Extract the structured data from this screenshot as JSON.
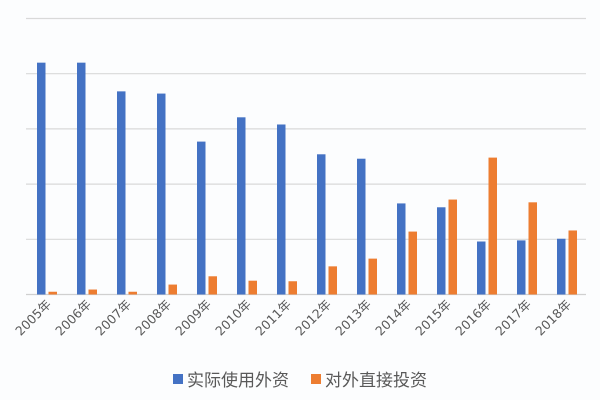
{
  "chart_data": {
    "type": "bar",
    "title": "",
    "xlabel": "",
    "ylabel": "",
    "y_unit_note": "No y-axis tick labels shown; values expressed in gridline units (each gridline interval = 1)",
    "ylim": [
      0,
      5
    ],
    "grid": true,
    "legend_position": "bottom",
    "categories": [
      "2005年",
      "2006年",
      "2007年",
      "2008年",
      "2009年",
      "2010年",
      "2011年",
      "2012年",
      "2013年",
      "2014年",
      "2015年",
      "2016年",
      "2017年",
      "2018年"
    ],
    "series": [
      {
        "name": "实际使用外资",
        "color": "#4472c4",
        "values": [
          4.2,
          4.2,
          3.68,
          3.64,
          2.77,
          3.21,
          3.08,
          2.54,
          2.46,
          1.65,
          1.58,
          0.96,
          0.98,
          1.01
        ]
      },
      {
        "name": "对外直接投资",
        "color": "#ed7d31",
        "values": [
          0.05,
          0.09,
          0.05,
          0.18,
          0.33,
          0.25,
          0.24,
          0.51,
          0.65,
          1.14,
          1.72,
          2.48,
          1.67,
          1.16
        ]
      }
    ]
  },
  "legend": {
    "items": [
      {
        "label": "实际使用外资",
        "color": "#4472c4"
      },
      {
        "label": "对外直接投资",
        "color": "#ed7d31"
      }
    ]
  }
}
